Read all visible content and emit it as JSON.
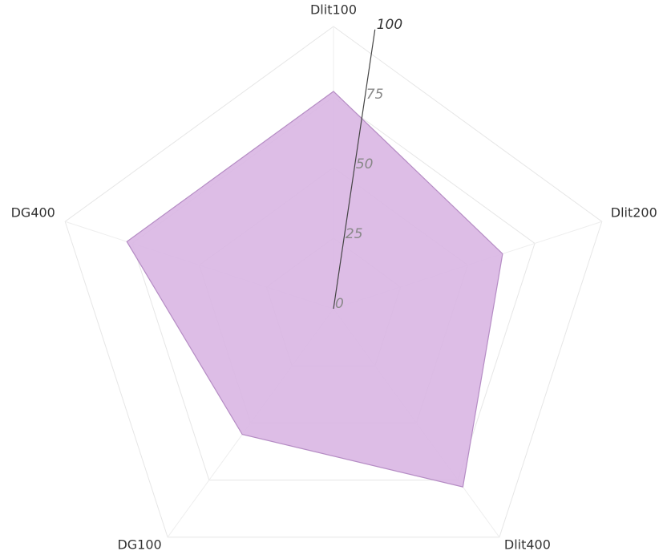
{
  "chart_data": {
    "type": "radar",
    "categories": [
      "Dlit100",
      "Dlit200",
      "Dlit400",
      "DG100",
      "DG400"
    ],
    "values": [
      77,
      63,
      78,
      55,
      77
    ],
    "color": "#d9b6e3",
    "rlim": [
      0,
      100
    ],
    "rticks": [
      0,
      25,
      50,
      75,
      100
    ],
    "grid": true
  }
}
